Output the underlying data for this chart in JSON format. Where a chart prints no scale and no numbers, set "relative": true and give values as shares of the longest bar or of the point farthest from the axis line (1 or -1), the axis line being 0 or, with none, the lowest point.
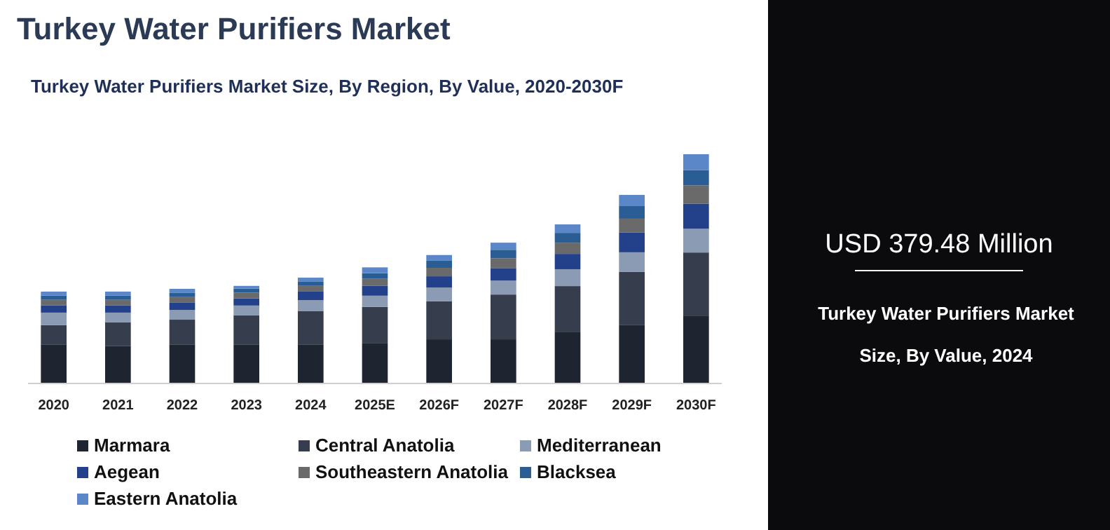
{
  "chart_data": {
    "type": "bar",
    "title": "Turkey Water Purifiers Market",
    "subtitle": "Turkey Water Purifiers Market Size, By Region, By Value, 2020-2030F",
    "categories": [
      "2020",
      "2021",
      "2022",
      "2023",
      "2024",
      "2025E",
      "2026F",
      "2027F",
      "2028F",
      "2029F",
      "2030F"
    ],
    "relative": true,
    "stacked": true,
    "legend": "bottom",
    "series": [
      {
        "name": "Marmara",
        "color": "#1f2530",
        "values": [
          0.166,
          0.16,
          0.166,
          0.166,
          0.166,
          0.172,
          0.19,
          0.19,
          0.221,
          0.252,
          0.294
        ]
      },
      {
        "name": "Central Anatolia",
        "color": "#363d4d",
        "values": [
          0.086,
          0.104,
          0.11,
          0.129,
          0.147,
          0.16,
          0.166,
          0.196,
          0.202,
          0.233,
          0.276
        ]
      },
      {
        "name": "Mediterranean",
        "color": "#8a9bb3",
        "values": [
          0.055,
          0.043,
          0.043,
          0.043,
          0.049,
          0.049,
          0.061,
          0.061,
          0.074,
          0.086,
          0.104
        ]
      },
      {
        "name": "Aegean",
        "color": "#23408a",
        "values": [
          0.031,
          0.031,
          0.031,
          0.031,
          0.037,
          0.043,
          0.049,
          0.055,
          0.067,
          0.086,
          0.11
        ]
      },
      {
        "name": "Southeastern Anatolia",
        "color": "#6a6a6a",
        "values": [
          0.025,
          0.025,
          0.025,
          0.025,
          0.025,
          0.031,
          0.037,
          0.043,
          0.049,
          0.061,
          0.08
        ]
      },
      {
        "name": "Blacksea",
        "color": "#2a5d94",
        "values": [
          0.018,
          0.018,
          0.018,
          0.018,
          0.018,
          0.025,
          0.031,
          0.037,
          0.043,
          0.055,
          0.067
        ]
      },
      {
        "name": "Eastern Anatolia",
        "color": "#5b87c9",
        "values": [
          0.018,
          0.018,
          0.018,
          0.012,
          0.018,
          0.025,
          0.025,
          0.031,
          0.037,
          0.049,
          0.069
        ]
      }
    ],
    "annotations": [
      "USD 379.48 Million",
      "Turkey Water Purifiers Market Size, By Value, 2024"
    ]
  }
}
